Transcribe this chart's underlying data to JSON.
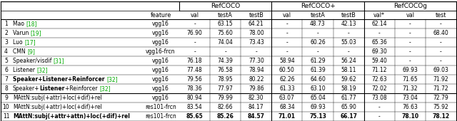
{
  "rows": [
    {
      "num": "1",
      "method": "Mao",
      "cite": "[18]",
      "feature": "vgg16",
      "bold_method": false,
      "bold_listener": false,
      "vals": [
        "-",
        "63.15",
        "64.21",
        "-",
        "48.73",
        "42.13",
        "62.14",
        "-",
        "-"
      ],
      "bold_vals": [
        false,
        false,
        false,
        false,
        false,
        false,
        false,
        false,
        false
      ]
    },
    {
      "num": "2",
      "method": "Varun",
      "cite": "[19]",
      "feature": "vgg16",
      "bold_method": false,
      "bold_listener": false,
      "vals": [
        "76.90",
        "75.60",
        "78.00",
        "-",
        "-",
        "-",
        "-",
        "-",
        "68.40"
      ],
      "bold_vals": [
        false,
        false,
        false,
        false,
        false,
        false,
        false,
        false,
        false
      ]
    },
    {
      "num": "3",
      "method": "Luo",
      "cite": "[17]",
      "feature": "vgg16",
      "bold_method": false,
      "bold_listener": false,
      "vals": [
        "-",
        "74.04",
        "73.43",
        "-",
        "60.26",
        "55.03",
        "65.36",
        "-",
        "-"
      ],
      "bold_vals": [
        false,
        false,
        false,
        false,
        false,
        false,
        false,
        false,
        false
      ]
    },
    {
      "num": "4",
      "method": "CMN",
      "cite": "[9]",
      "feature": "vgg16-frcn",
      "bold_method": false,
      "bold_listener": false,
      "vals": [
        "-",
        "-",
        "-",
        "-",
        "-",
        "-",
        "69.30",
        "-",
        "-"
      ],
      "bold_vals": [
        false,
        false,
        false,
        false,
        false,
        false,
        false,
        false,
        false
      ]
    },
    {
      "num": "5",
      "method": "Speaker/visdif",
      "cite": "[31]",
      "feature": "vgg16",
      "bold_method": false,
      "bold_listener": false,
      "vals": [
        "76.18",
        "74.39",
        "77.30",
        "58.94",
        "61.29",
        "56.24",
        "59.40",
        "-",
        "-"
      ],
      "bold_vals": [
        false,
        false,
        false,
        false,
        false,
        false,
        false,
        false,
        false
      ]
    },
    {
      "num": "6",
      "method": "Listener",
      "cite": "[32]",
      "feature": "vgg16",
      "bold_method": false,
      "bold_listener": false,
      "vals": [
        "77.48",
        "76.58",
        "78.94",
        "60.50",
        "61.39",
        "58.11",
        "71.12",
        "69.93",
        "69.03"
      ],
      "bold_vals": [
        false,
        false,
        false,
        false,
        false,
        false,
        false,
        false,
        false
      ]
    },
    {
      "num": "7",
      "method": "Speaker+Listener+Reinforcer",
      "cite": "[32]",
      "feature": "vgg16",
      "bold_method": true,
      "bold_listener": false,
      "vals": [
        "79.56",
        "78.95",
        "80.22",
        "62.26",
        "64.60",
        "59.62",
        "72.63",
        "71.65",
        "71.92"
      ],
      "bold_vals": [
        false,
        false,
        false,
        false,
        false,
        false,
        false,
        false,
        false
      ]
    },
    {
      "num": "8",
      "method": "Speaker+Listener+Reinforcer",
      "cite": "[32]",
      "feature": "vgg16",
      "bold_method": false,
      "bold_listener": true,
      "vals": [
        "78.36",
        "77.97",
        "79.86",
        "61.33",
        "63.10",
        "58.19",
        "72.02",
        "71.32",
        "71.72"
      ],
      "bold_vals": [
        false,
        false,
        false,
        false,
        false,
        false,
        false,
        false,
        false
      ]
    },
    {
      "num": "9",
      "method": "MAttN:subj(+attr)+loc(+dif)+rel",
      "cite": "",
      "feature": "vgg16",
      "bold_method": false,
      "bold_listener": false,
      "vals": [
        "80.94",
        "79.99",
        "82.30",
        "63.07",
        "65.04",
        "61.77",
        "73.08",
        "73.04",
        "72.79"
      ],
      "bold_vals": [
        false,
        false,
        false,
        false,
        false,
        false,
        false,
        false,
        false
      ]
    },
    {
      "num": "10",
      "method": "MAttN:subj(+attr)+loc(+dif)+rel",
      "cite": "",
      "feature": "res101-frcn",
      "bold_method": false,
      "bold_listener": false,
      "vals": [
        "83.54",
        "82.66",
        "84.17",
        "68.34",
        "69.93",
        "65.90",
        "-",
        "76.63",
        "75.92"
      ],
      "bold_vals": [
        false,
        false,
        false,
        false,
        false,
        false,
        false,
        false,
        false
      ]
    },
    {
      "num": "11",
      "method": "MAttN:subj(+attr+attn)+loc(+dif)+rel",
      "cite": "",
      "feature": "res101-frcn",
      "bold_method": true,
      "bold_listener": false,
      "vals": [
        "85.65",
        "85.26",
        "84.57",
        "71.01",
        "75.13",
        "66.17",
        "-",
        "78.10",
        "78.12"
      ],
      "bold_vals": [
        true,
        true,
        true,
        true,
        true,
        true,
        false,
        true,
        true
      ]
    }
  ],
  "green": "#00aa00",
  "col_labels": [
    "feature",
    "val",
    "testA",
    "testB",
    "val",
    "testA",
    "testB",
    "val*",
    "val",
    "test"
  ],
  "group_labels": [
    "RefCOCO",
    "RefCOCO+",
    "RefCOCOg"
  ],
  "group_spans": [
    3,
    3,
    3
  ]
}
